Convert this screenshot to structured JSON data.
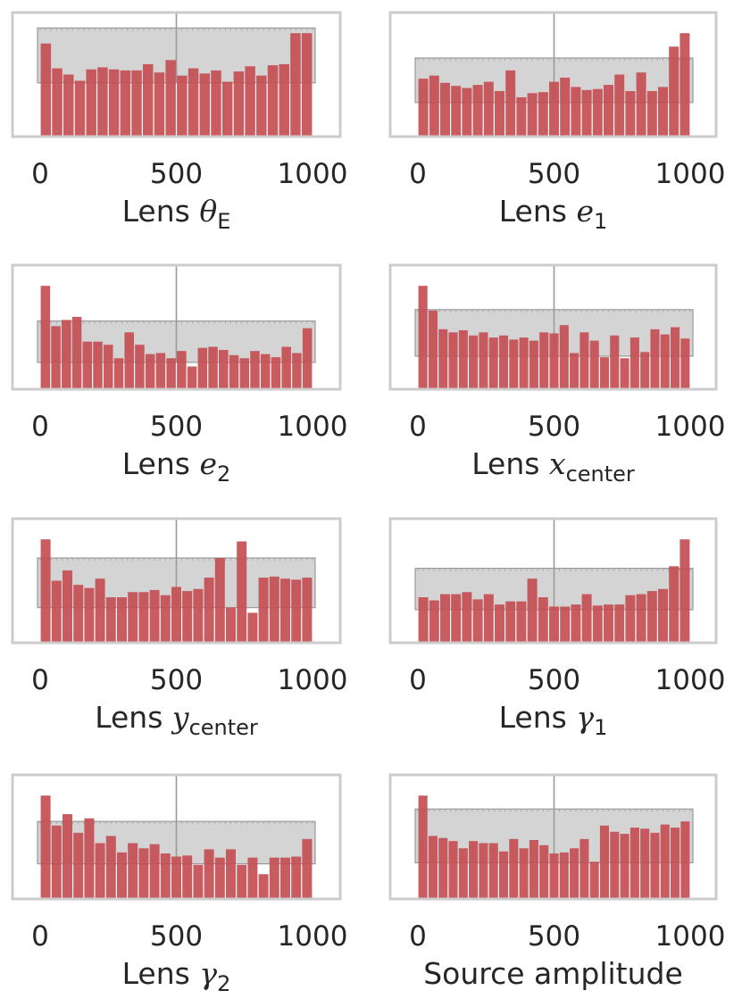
{
  "colors": {
    "bar": "#c44e52",
    "band": "#b0b0b0",
    "frame": "#cccccc",
    "center_line": "#9a9a9a",
    "text": "#262626"
  },
  "chart_data": [
    {
      "type": "bar",
      "xlabel": {
        "prefix": "Lens ",
        "symbol": "θ",
        "sub": "E"
      },
      "xticks": [
        "0",
        "500",
        "1000"
      ],
      "xlim": [
        0,
        1000
      ],
      "ylim": [
        0,
        1.2
      ],
      "band": [
        0.52,
        1.05
      ],
      "values": [
        0.9,
        0.66,
        0.6,
        0.54,
        0.65,
        0.67,
        0.65,
        0.64,
        0.64,
        0.7,
        0.62,
        0.74,
        0.59,
        0.66,
        0.61,
        0.64,
        0.53,
        0.63,
        0.68,
        0.59,
        0.69,
        0.7,
        1.0,
        1.0
      ],
      "grid": false
    },
    {
      "type": "bar",
      "xlabel": {
        "prefix": "Lens ",
        "symbol": "e",
        "sub": "1"
      },
      "xticks": [
        "0",
        "500",
        "1000"
      ],
      "xlim": [
        0,
        1000
      ],
      "ylim": [
        0,
        1.2
      ],
      "band": [
        0.33,
        0.76
      ],
      "values": [
        0.56,
        0.59,
        0.52,
        0.49,
        0.47,
        0.5,
        0.53,
        0.44,
        0.64,
        0.38,
        0.42,
        0.43,
        0.53,
        0.57,
        0.48,
        0.45,
        0.46,
        0.5,
        0.6,
        0.44,
        0.62,
        0.44,
        0.48,
        0.87,
        1.0
      ],
      "grid": false
    },
    {
      "type": "bar",
      "xlabel": {
        "prefix": "Lens ",
        "symbol": "e",
        "sub": "2"
      },
      "xticks": [
        "0",
        "500",
        "1000"
      ],
      "xlim": [
        0,
        1000
      ],
      "ylim": [
        0,
        1.2
      ],
      "band": [
        0.26,
        0.66
      ],
      "values": [
        1.0,
        0.61,
        0.67,
        0.7,
        0.46,
        0.46,
        0.43,
        0.3,
        0.55,
        0.43,
        0.34,
        0.35,
        0.3,
        0.37,
        0.22,
        0.4,
        0.41,
        0.38,
        0.33,
        0.3,
        0.37,
        0.34,
        0.31,
        0.41,
        0.35,
        0.59
      ],
      "grid": false
    },
    {
      "type": "bar",
      "xlabel": {
        "prefix": "Lens ",
        "symbol": "x",
        "sub": "center"
      },
      "xticks": [
        "0",
        "500",
        "1000"
      ],
      "xlim": [
        0,
        1000
      ],
      "ylim": [
        0,
        1.2
      ],
      "band": [
        0.32,
        0.77
      ],
      "values": [
        1.0,
        0.76,
        0.58,
        0.55,
        0.57,
        0.52,
        0.55,
        0.5,
        0.52,
        0.48,
        0.5,
        0.47,
        0.55,
        0.54,
        0.62,
        0.35,
        0.55,
        0.47,
        0.31,
        0.52,
        0.3,
        0.5,
        0.36,
        0.58,
        0.53,
        0.6,
        0.49
      ],
      "grid": false
    },
    {
      "type": "bar",
      "xlabel": {
        "prefix": "Lens ",
        "symbol": "y",
        "sub": "center"
      },
      "xticks": [
        "0",
        "500",
        "1000"
      ],
      "xlim": [
        0,
        1000
      ],
      "ylim": [
        0,
        1.2
      ],
      "band": [
        0.34,
        0.82
      ],
      "values": [
        1.0,
        0.6,
        0.7,
        0.56,
        0.53,
        0.62,
        0.44,
        0.44,
        0.49,
        0.49,
        0.51,
        0.46,
        0.54,
        0.5,
        0.52,
        0.63,
        0.82,
        0.34,
        0.98,
        0.29,
        0.63,
        0.64,
        0.62,
        0.61,
        0.63
      ],
      "grid": false
    },
    {
      "type": "bar",
      "xlabel": {
        "prefix": "Lens ",
        "symbol": "γ",
        "sub": "1"
      },
      "xticks": [
        "0",
        "500",
        "1000"
      ],
      "xlim": [
        0,
        1000
      ],
      "ylim": [
        0,
        1.2
      ],
      "band": [
        0.32,
        0.72
      ],
      "values": [
        0.44,
        0.41,
        0.47,
        0.47,
        0.49,
        0.42,
        0.47,
        0.37,
        0.4,
        0.4,
        0.62,
        0.44,
        0.35,
        0.35,
        0.37,
        0.47,
        0.36,
        0.37,
        0.37,
        0.46,
        0.47,
        0.5,
        0.52,
        0.74,
        1.0
      ],
      "grid": false
    },
    {
      "type": "bar",
      "xlabel": {
        "prefix": "Lens ",
        "symbol": "γ",
        "sub": "2"
      },
      "xticks": [
        "0",
        "500",
        "1000"
      ],
      "xlim": [
        0,
        1000
      ],
      "ylim": [
        0,
        1.2
      ],
      "band": [
        0.34,
        0.75
      ],
      "values": [
        1.0,
        0.71,
        0.82,
        0.64,
        0.78,
        0.54,
        0.61,
        0.45,
        0.54,
        0.49,
        0.53,
        0.44,
        0.41,
        0.42,
        0.33,
        0.48,
        0.4,
        0.48,
        0.33,
        0.4,
        0.24,
        0.4,
        0.4,
        0.41,
        0.58
      ],
      "grid": false
    },
    {
      "type": "bar",
      "xlabel": {
        "prefix": "",
        "symbol": "",
        "sub": "",
        "text": "Source amplitude"
      },
      "xticks": [
        "0",
        "500",
        "1000"
      ],
      "xlim": [
        0,
        1000
      ],
      "ylim": [
        0,
        1.2
      ],
      "band": [
        0.35,
        0.87
      ],
      "values": [
        1.0,
        0.61,
        0.59,
        0.56,
        0.49,
        0.56,
        0.54,
        0.54,
        0.46,
        0.58,
        0.49,
        0.57,
        0.52,
        0.44,
        0.45,
        0.49,
        0.58,
        0.36,
        0.71,
        0.65,
        0.63,
        0.69,
        0.68,
        0.64,
        0.72,
        0.69,
        0.75
      ],
      "grid": false
    }
  ]
}
